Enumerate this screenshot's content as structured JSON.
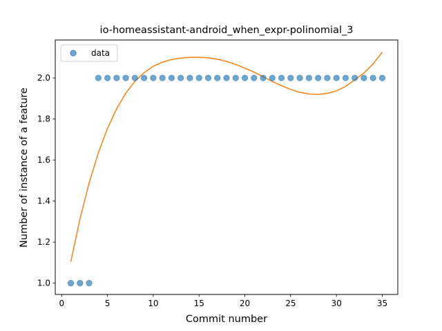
{
  "chart_data": {
    "type": "scatter",
    "title": "io-homeassistant-android_when_expr-polinomial_3",
    "xlabel": "Commit number",
    "ylabel": "Number of instance of a feature",
    "xlim": [
      -0.7,
      36.7
    ],
    "ylim": [
      0.945,
      2.185
    ],
    "xticks": [
      0,
      5,
      10,
      15,
      20,
      25,
      30,
      35
    ],
    "yticks": [
      1.0,
      1.2,
      1.4,
      1.6,
      1.8,
      2.0
    ],
    "ytick_labels": [
      "1.0",
      "1.2",
      "1.4",
      "1.6",
      "1.8",
      "2.0"
    ],
    "legend": {
      "position": "top-left",
      "entries": [
        "data"
      ]
    },
    "grid": false,
    "series": [
      {
        "name": "data",
        "kind": "scatter",
        "color": "#1f77b4",
        "x": [
          1,
          2,
          3,
          4,
          5,
          6,
          7,
          8,
          9,
          10,
          11,
          12,
          13,
          14,
          15,
          16,
          17,
          18,
          19,
          20,
          21,
          22,
          23,
          24,
          25,
          26,
          27,
          28,
          29,
          30,
          31,
          32,
          33,
          34,
          35
        ],
        "y": [
          1,
          1,
          1,
          2,
          2,
          2,
          2,
          2,
          2,
          2,
          2,
          2,
          2,
          2,
          2,
          2,
          2,
          2,
          2,
          2,
          2,
          2,
          2,
          2,
          2,
          2,
          2,
          2,
          2,
          2,
          2,
          2,
          2,
          2,
          2
        ]
      },
      {
        "kind": "line",
        "color": "#ff7f0e",
        "x": [
          1,
          2,
          3,
          4,
          5,
          6,
          7,
          8,
          9,
          10,
          11,
          12,
          13,
          14,
          15,
          16,
          17,
          18,
          19,
          20,
          21,
          22,
          23,
          24,
          25,
          26,
          27,
          28,
          29,
          30,
          31,
          32,
          33,
          34,
          35
        ],
        "y": [
          1.105,
          1.313,
          1.489,
          1.635,
          1.754,
          1.85,
          1.926,
          1.984,
          2.026,
          2.057,
          2.077,
          2.09,
          2.097,
          2.1,
          2.101,
          2.098,
          2.091,
          2.081,
          2.066,
          2.048,
          2.028,
          2.006,
          1.983,
          1.962,
          1.944,
          1.93,
          1.922,
          1.92,
          1.925,
          1.937,
          1.959,
          1.991,
          2.024,
          2.068,
          2.126
        ]
      }
    ]
  }
}
